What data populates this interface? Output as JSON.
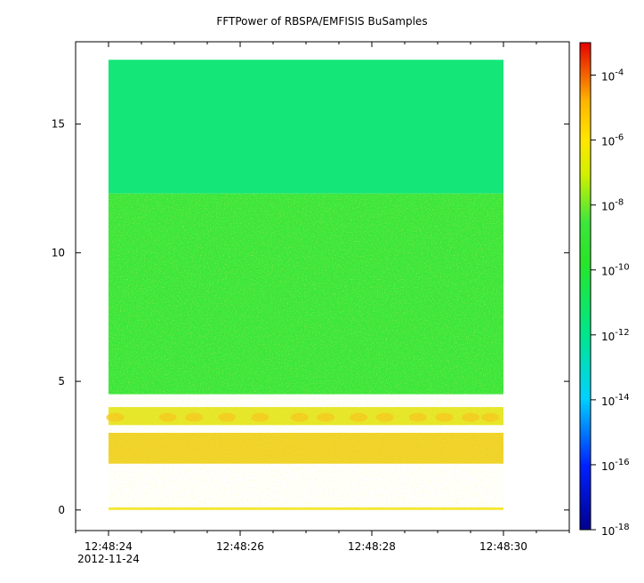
{
  "chart_data": {
    "type": "heatmap",
    "title": "FFTPower of RBSPA/EMFISIS  BuSamples",
    "xlabel": "",
    "ylabel": "",
    "x_range": [
      "12:48:23.5",
      "12:48:31"
    ],
    "ylim": [
      -0.8,
      18.2
    ],
    "data_x_range": [
      "12:48:24",
      "12:48:30"
    ],
    "data_y_range": [
      0,
      17.5
    ],
    "x_ticks": [
      {
        "label": "12:48:24",
        "sublabel": "2012-11-24",
        "seconds": 24
      },
      {
        "label": "12:48:26",
        "seconds": 26
      },
      {
        "label": "12:48:28",
        "seconds": 28
      },
      {
        "label": "12:48:30",
        "seconds": 30
      }
    ],
    "y_ticks": [
      0,
      5,
      10,
      15
    ],
    "colorbar": {
      "scale": "log",
      "range": [
        1e-18,
        0.001
      ],
      "colormap": "rainbow (blue-cyan-green-yellow-red)",
      "tick_labels": [
        "10-4",
        "10-6",
        "10-8",
        "10-10",
        "10-12",
        "10-14",
        "10-16",
        "10-18"
      ],
      "tick_exponents": [
        -4,
        -6,
        -8,
        -10,
        -12,
        -14,
        -16,
        -18
      ]
    },
    "regions": [
      {
        "y_range": [
          12.3,
          17.5
        ],
        "approx_power": "1e-12",
        "color": "#14e678"
      },
      {
        "y_range": [
          4.5,
          12.3
        ],
        "approx_power": "1e-10",
        "color": "#3ce63c"
      },
      {
        "y_range": [
          3.3,
          4.0
        ],
        "approx_power": "1e-8",
        "color": "#e6e628",
        "note": "periodic bursts"
      },
      {
        "y_range": [
          1.8,
          3.0
        ],
        "approx_power": "1e-8",
        "color": "#f0d228",
        "note": "enhanced band"
      },
      {
        "y_range": [
          0,
          0.1
        ],
        "approx_power": "1e-8",
        "color": "#f5e632"
      }
    ]
  }
}
